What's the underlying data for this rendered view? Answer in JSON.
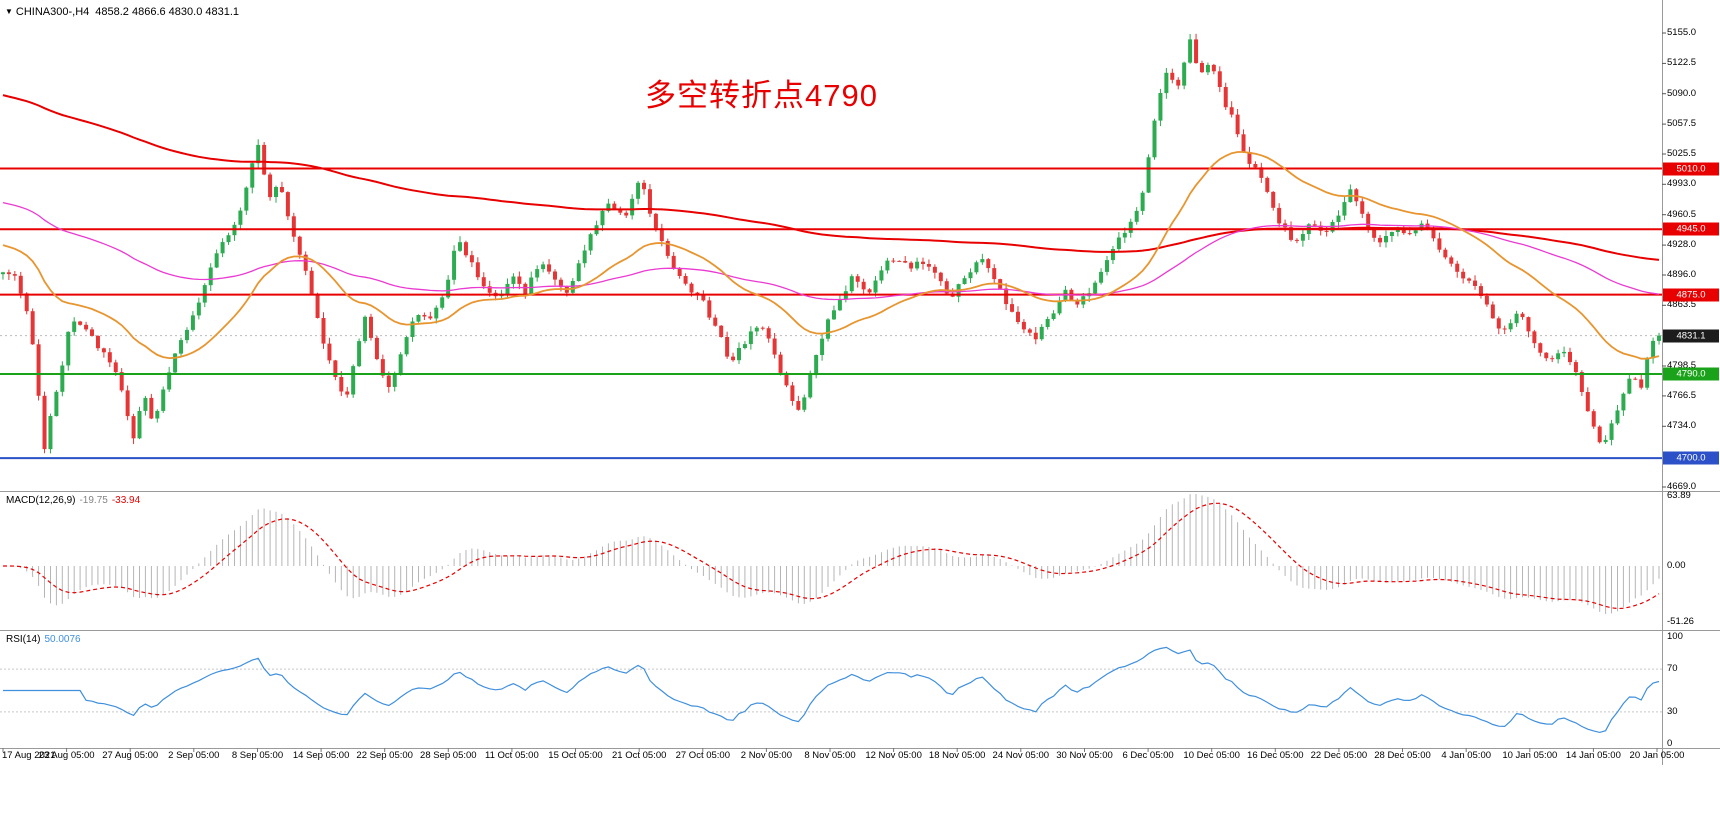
{
  "terminal": {
    "dropdown_icon": "▼",
    "symbol": "CHINA300-,H4",
    "ohlc": "4858.2 4866.6 4830.0 4831.1"
  },
  "annotation": {
    "text": "多空转折点4790",
    "color": "#e80000"
  },
  "colors": {
    "background": "#ffffff",
    "up": "#2cab50",
    "down": "#e43636",
    "separator": "#9a9a9a",
    "axis_text": "#000000",
    "current_tag_bg": "#1c1c1c",
    "current_price_line": "#bbbbbb"
  },
  "chart_data": {
    "type": "candlestick",
    "symbol": "CHINA300-",
    "timeframe": "H4",
    "title": "CHINA300-,H4",
    "current_price": 4831.1,
    "ohlc_display": {
      "open": 4858.2,
      "high": 4866.6,
      "low": 4830.0,
      "close": 4831.1
    },
    "bars": 280,
    "y_axis": {
      "min": 4669.0,
      "max": 5155.0,
      "ticks": [
        {
          "v": 5155.0,
          "t": "5155.0"
        },
        {
          "v": 5122.5,
          "t": "5122.5"
        },
        {
          "v": 5090.0,
          "t": "5090.0"
        },
        {
          "v": 5057.5,
          "t": "5057.5"
        },
        {
          "v": 5025.5,
          "t": "5025.5"
        },
        {
          "v": 4993.0,
          "t": "4993.0"
        },
        {
          "v": 4960.5,
          "t": "4960.5"
        },
        {
          "v": 4928.0,
          "t": "4928.0"
        },
        {
          "v": 4896.0,
          "t": "4896.0"
        },
        {
          "v": 4863.5,
          "t": "4863.5"
        },
        {
          "v": 4798.5,
          "t": "4798.5"
        },
        {
          "v": 4766.5,
          "t": "4766.5"
        },
        {
          "v": 4734.0,
          "t": "4734.0"
        },
        {
          "v": 4669.0,
          "t": "4669.0"
        }
      ]
    },
    "x_axis": {
      "labels": [
        "17 Aug 2021",
        "23 Aug 05:00",
        "27 Aug 05:00",
        "2 Sep 05:00",
        "8 Sep 05:00",
        "14 Sep 05:00",
        "22 Sep 05:00",
        "28 Sep 05:00",
        "11 Oct 05:00",
        "15 Oct 05:00",
        "21 Oct 05:00",
        "27 Oct 05:00",
        "2 Nov 05:00",
        "8 Nov 05:00",
        "12 Nov 05:00",
        "18 Nov 05:00",
        "24 Nov 05:00",
        "30 Nov 05:00",
        "6 Dec 05:00",
        "10 Dec 05:00",
        "16 Dec 05:00",
        "22 Dec 05:00",
        "28 Dec 05:00",
        "4 Jan 05:00",
        "10 Jan 05:00",
        "14 Jan 05:00",
        "20 Jan 05:00"
      ]
    },
    "levels": [
      {
        "v": 5010.0,
        "t": "5010.0",
        "c": "#e80000",
        "w": 2
      },
      {
        "v": 4945.0,
        "t": "4945.0",
        "c": "#e80000",
        "w": 2
      },
      {
        "v": 4875.0,
        "t": "4875.0",
        "c": "#e80000",
        "w": 2
      },
      {
        "v": 4790.0,
        "t": "4790.0",
        "c": "#1aa31a",
        "w": 2
      },
      {
        "v": 4700.0,
        "t": "4700.0",
        "c": "#2b50c8",
        "w": 2
      }
    ],
    "current_price_tag": {
      "v": 4831.1,
      "t": "4831.1"
    },
    "price_path": [
      [
        0,
        4893
      ],
      [
        12,
        4903
      ],
      [
        26,
        4862
      ],
      [
        36,
        4800
      ],
      [
        44,
        4705
      ],
      [
        52,
        4755
      ],
      [
        62,
        4800
      ],
      [
        72,
        4852
      ],
      [
        84,
        4842
      ],
      [
        96,
        4820
      ],
      [
        108,
        4808
      ],
      [
        120,
        4780
      ],
      [
        133,
        4718
      ],
      [
        144,
        4768
      ],
      [
        154,
        4733
      ],
      [
        166,
        4782
      ],
      [
        180,
        4822
      ],
      [
        194,
        4856
      ],
      [
        208,
        4893
      ],
      [
        222,
        4930
      ],
      [
        236,
        4953
      ],
      [
        248,
        4995
      ],
      [
        258,
        5038
      ],
      [
        268,
        4978
      ],
      [
        280,
        4996
      ],
      [
        292,
        4944
      ],
      [
        306,
        4902
      ],
      [
        320,
        4838
      ],
      [
        334,
        4788
      ],
      [
        346,
        4758
      ],
      [
        356,
        4818
      ],
      [
        366,
        4852
      ],
      [
        378,
        4805
      ],
      [
        390,
        4772
      ],
      [
        402,
        4815
      ],
      [
        416,
        4855
      ],
      [
        430,
        4845
      ],
      [
        444,
        4875
      ],
      [
        458,
        4938
      ],
      [
        470,
        4912
      ],
      [
        484,
        4880
      ],
      [
        498,
        4868
      ],
      [
        512,
        4895
      ],
      [
        526,
        4878
      ],
      [
        540,
        4912
      ],
      [
        554,
        4890
      ],
      [
        568,
        4872
      ],
      [
        582,
        4915
      ],
      [
        596,
        4952
      ],
      [
        610,
        4972
      ],
      [
        624,
        4955
      ],
      [
        640,
        4998
      ],
      [
        654,
        4950
      ],
      [
        668,
        4912
      ],
      [
        684,
        4888
      ],
      [
        700,
        4872
      ],
      [
        716,
        4838
      ],
      [
        730,
        4805
      ],
      [
        744,
        4822
      ],
      [
        758,
        4845
      ],
      [
        772,
        4822
      ],
      [
        786,
        4775
      ],
      [
        798,
        4748
      ],
      [
        812,
        4792
      ],
      [
        826,
        4845
      ],
      [
        840,
        4872
      ],
      [
        854,
        4895
      ],
      [
        868,
        4878
      ],
      [
        882,
        4902
      ],
      [
        896,
        4918
      ],
      [
        910,
        4902
      ],
      [
        924,
        4912
      ],
      [
        938,
        4892
      ],
      [
        952,
        4872
      ],
      [
        966,
        4895
      ],
      [
        980,
        4915
      ],
      [
        994,
        4892
      ],
      [
        1008,
        4865
      ],
      [
        1022,
        4842
      ],
      [
        1036,
        4828
      ],
      [
        1050,
        4852
      ],
      [
        1064,
        4878
      ],
      [
        1078,
        4862
      ],
      [
        1092,
        4885
      ],
      [
        1106,
        4912
      ],
      [
        1120,
        4935
      ],
      [
        1134,
        4955
      ],
      [
        1146,
        5000
      ],
      [
        1158,
        5085
      ],
      [
        1168,
        5115
      ],
      [
        1178,
        5098
      ],
      [
        1190,
        5146
      ],
      [
        1200,
        5108
      ],
      [
        1210,
        5128
      ],
      [
        1222,
        5088
      ],
      [
        1234,
        5058
      ],
      [
        1246,
        5022
      ],
      [
        1258,
        5005
      ],
      [
        1270,
        4978
      ],
      [
        1282,
        4948
      ],
      [
        1296,
        4930
      ],
      [
        1310,
        4952
      ],
      [
        1324,
        4938
      ],
      [
        1338,
        4962
      ],
      [
        1352,
        4988
      ],
      [
        1366,
        4948
      ],
      [
        1380,
        4930
      ],
      [
        1394,
        4945
      ],
      [
        1408,
        4938
      ],
      [
        1422,
        4950
      ],
      [
        1436,
        4932
      ],
      [
        1450,
        4908
      ],
      [
        1464,
        4895
      ],
      [
        1478,
        4882
      ],
      [
        1492,
        4852
      ],
      [
        1506,
        4832
      ],
      [
        1520,
        4858
      ],
      [
        1534,
        4825
      ],
      [
        1548,
        4800
      ],
      [
        1562,
        4822
      ],
      [
        1576,
        4788
      ],
      [
        1590,
        4742
      ],
      [
        1602,
        4712
      ],
      [
        1612,
        4738
      ],
      [
        1622,
        4765
      ],
      [
        1632,
        4792
      ],
      [
        1640,
        4772
      ],
      [
        1650,
        4820
      ],
      [
        1660,
        4831
      ]
    ],
    "moving_averages": [
      {
        "name": "ma-slow",
        "color": "#e80000",
        "period": 250,
        "seed": 5090,
        "width": 2
      },
      {
        "name": "ma-medium",
        "color": "#ea3ad2",
        "period": 100,
        "seed": 4975,
        "width": 1.3
      },
      {
        "name": "ma-fast",
        "color": "#e8952f",
        "period": 30,
        "seed": 4930,
        "width": 1.8
      }
    ],
    "indicators": {
      "macd": {
        "label": "MACD(12,26,9)",
        "value_main": "-19.75",
        "value_signal": "-33.94",
        "fast": 12,
        "slow": 26,
        "signal": 9,
        "axis": [
          {
            "v": 63.89,
            "t": "63.89"
          },
          {
            "v": 0,
            "t": "0.00"
          },
          {
            "v": -51.26,
            "t": "-51.26"
          }
        ],
        "histogram_color": "#b5b5b5",
        "signal_color": "#e80000"
      },
      "rsi": {
        "label": "RSI(14)",
        "value": "50.0076",
        "period": 14,
        "axis": [
          {
            "v": 100,
            "t": "100"
          },
          {
            "v": 70,
            "t": "70"
          },
          {
            "v": 30,
            "t": "30"
          },
          {
            "v": 0,
            "t": "0"
          }
        ],
        "line_color": "#3f8fdd",
        "levels": [
          70,
          30
        ],
        "level_color": "#c8c8c8"
      }
    }
  }
}
